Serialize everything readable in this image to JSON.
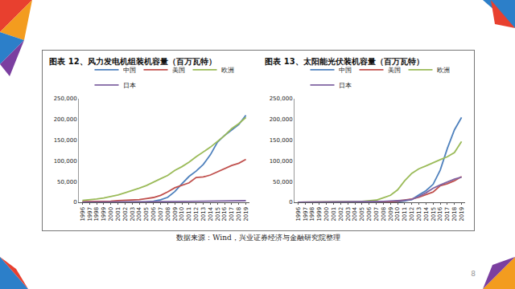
{
  "chart_data": [
    {
      "type": "line",
      "title": "图表 12、风力发电机组装机容量（百万瓦特）",
      "categories": [
        "1996",
        "1997",
        "1998",
        "1999",
        "2000",
        "2001",
        "2002",
        "2003",
        "2004",
        "2005",
        "2006",
        "2007",
        "2008",
        "2009",
        "2010",
        "2011",
        "2012",
        "2013",
        "2014",
        "2015",
        "2016",
        "2017",
        "2018",
        "2019"
      ],
      "series": [
        {
          "name": "中国",
          "color": "#4f81bd",
          "values": [
            200,
            300,
            400,
            500,
            350,
            400,
            470,
            570,
            760,
            1260,
            2600,
            5900,
            12000,
            25800,
            44700,
            62400,
            75300,
            91400,
            114600,
            145100,
            161400,
            175300,
            188000,
            210000
          ]
        },
        {
          "name": "美国",
          "color": "#c0504d",
          "values": [
            1600,
            1600,
            1900,
            2500,
            2500,
            4200,
            4700,
            6300,
            6700,
            9100,
            11600,
            16800,
            25100,
            35000,
            40200,
            46900,
            60000,
            61100,
            65900,
            73900,
            82000,
            88900,
            94300,
            103600
          ]
        },
        {
          "name": "欧洲",
          "color": "#9bbb59",
          "values": [
            4500,
            6000,
            8000,
            10500,
            13500,
            17500,
            23000,
            28000,
            34000,
            40500,
            48000,
            57000,
            65000,
            77000,
            86000,
            97000,
            110000,
            121000,
            133000,
            147000,
            161000,
            178000,
            190000,
            205000
          ]
        },
        {
          "name": "日本",
          "color": "#8064a2",
          "values": [
            20,
            30,
            40,
            70,
            140,
            300,
            400,
            600,
            900,
            1000,
            1300,
            1500,
            1800,
            2000,
            2300,
            2400,
            2600,
            2700,
            2800,
            3000,
            3200,
            3400,
            3700,
            3900
          ]
        }
      ],
      "ylim": [
        0,
        250000
      ],
      "yticks": [
        0,
        {
          "value": 50000,
          "label": "50,000"
        },
        {
          "value": 100000,
          "label": "100,000"
        },
        {
          "value": 150000,
          "label": "150,000"
        },
        {
          "value": 200000,
          "label": "200,000"
        },
        {
          "value": 250000,
          "label": "250,000"
        }
      ],
      "grid": false,
      "legend": "top"
    },
    {
      "type": "line",
      "title": "图表 13、太阳能光伏装机容量（百万瓦特）",
      "categories": [
        "1996",
        "1997",
        "1998",
        "1999",
        "2000",
        "2001",
        "2002",
        "2003",
        "2004",
        "2005",
        "2006",
        "2007",
        "2008",
        "2009",
        "2010",
        "2011",
        "2012",
        "2013",
        "2014",
        "2015",
        "2016",
        "2017",
        "2018",
        "2019"
      ],
      "series": [
        {
          "name": "中国",
          "color": "#4f81bd",
          "values": [
            10,
            20,
            20,
            20,
            20,
            20,
            20,
            30,
            60,
            70,
            80,
            100,
            140,
            300,
            800,
            3100,
            6700,
            17700,
            28200,
            43500,
            77800,
            130000,
            175000,
            205000
          ]
        },
        {
          "name": "美国",
          "color": "#c0504d",
          "values": [
            80,
            90,
            100,
            110,
            130,
            150,
            200,
            280,
            400,
            480,
            620,
            830,
            1170,
            1640,
            2900,
            5200,
            8100,
            12100,
            18300,
            25000,
            40000,
            45000,
            52000,
            62000
          ]
        },
        {
          "name": "欧洲",
          "color": "#9bbb59",
          "values": [
            100,
            150,
            200,
            300,
            400,
            600,
            800,
            1200,
            1800,
            2300,
            3300,
            5300,
            11000,
            17000,
            30000,
            52000,
            70000,
            81000,
            88000,
            96000,
            103000,
            110000,
            120000,
            147000
          ]
        },
        {
          "name": "日本",
          "color": "#8064a2",
          "values": [
            60,
            90,
            130,
            210,
            330,
            450,
            640,
            860,
            1130,
            1420,
            1710,
            1920,
            2140,
            2630,
            3620,
            4910,
            7000,
            14000,
            23000,
            34000,
            42000,
            49000,
            56000,
            61000
          ]
        }
      ],
      "ylim": [
        0,
        250000
      ],
      "yticks": [
        0,
        {
          "value": 50000,
          "label": "50,000"
        },
        {
          "value": 100000,
          "label": "100,000"
        },
        {
          "value": 150000,
          "label": "150,000"
        },
        {
          "value": 200000,
          "label": "200,000"
        },
        {
          "value": 250000,
          "label": "250,000"
        }
      ],
      "grid": false,
      "legend": "top"
    }
  ],
  "source": "数据来源：Wind，兴业证券经济与金融研究院整理",
  "page": "8"
}
